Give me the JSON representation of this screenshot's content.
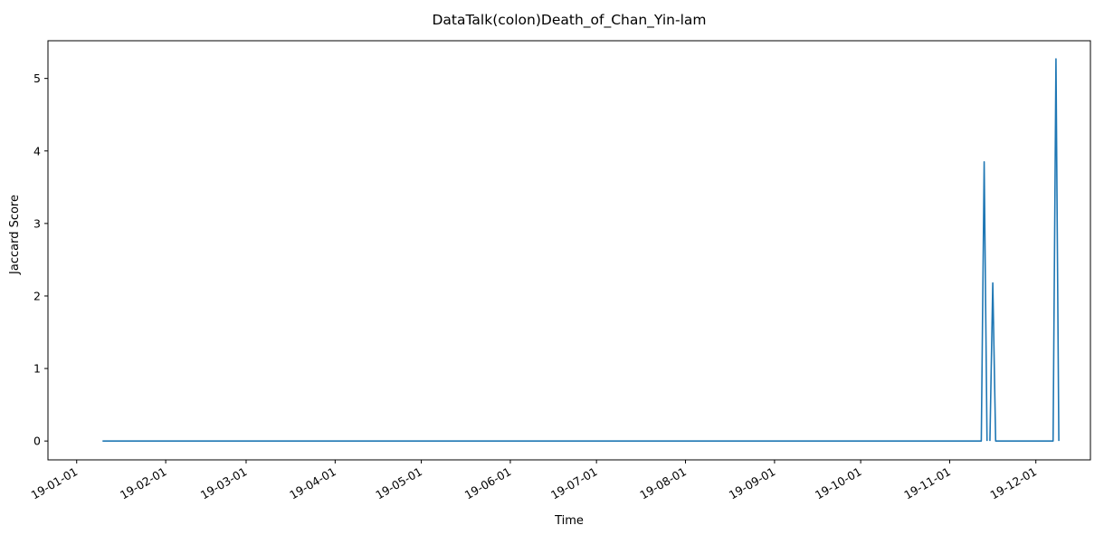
{
  "chart_data": {
    "type": "line",
    "title": "DataTalk(colon)Death_of_Chan_Yin-lam",
    "xlabel": "Time",
    "ylabel": "Jaccard Score",
    "x_range": [
      "2018-12-22",
      "2019-12-20"
    ],
    "ylim": [
      -0.26,
      5.52
    ],
    "grid": false,
    "x_ticks": [
      {
        "date": "2019-01-01",
        "label": "19-01-01"
      },
      {
        "date": "2019-02-01",
        "label": "19-02-01"
      },
      {
        "date": "2019-03-01",
        "label": "19-03-01"
      },
      {
        "date": "2019-04-01",
        "label": "19-04-01"
      },
      {
        "date": "2019-05-01",
        "label": "19-05-01"
      },
      {
        "date": "2019-06-01",
        "label": "19-06-01"
      },
      {
        "date": "2019-07-01",
        "label": "19-07-01"
      },
      {
        "date": "2019-08-01",
        "label": "19-08-01"
      },
      {
        "date": "2019-09-01",
        "label": "19-09-01"
      },
      {
        "date": "2019-10-01",
        "label": "19-10-01"
      },
      {
        "date": "2019-11-01",
        "label": "19-11-01"
      },
      {
        "date": "2019-12-01",
        "label": "19-12-01"
      }
    ],
    "y_ticks": [
      {
        "value": 0,
        "label": "0"
      },
      {
        "value": 1,
        "label": "1"
      },
      {
        "value": 2,
        "label": "2"
      },
      {
        "value": 3,
        "label": "3"
      },
      {
        "value": 4,
        "label": "4"
      },
      {
        "value": 5,
        "label": "5"
      }
    ],
    "series": [
      {
        "color": "#1f77b4",
        "segments": [
          [
            {
              "x": "2019-01-10",
              "y": 0
            },
            {
              "x": "2019-11-12",
              "y": 0
            },
            {
              "x": "2019-11-13",
              "y": 3.85
            },
            {
              "x": "2019-11-14",
              "y": 0
            }
          ],
          [
            {
              "x": "2019-11-15",
              "y": 0
            },
            {
              "x": "2019-11-16",
              "y": 2.18
            },
            {
              "x": "2019-11-17",
              "y": 0
            },
            {
              "x": "2019-12-07",
              "y": 0
            },
            {
              "x": "2019-12-08",
              "y": 5.27
            },
            {
              "x": "2019-12-09",
              "y": 0
            }
          ]
        ]
      }
    ]
  }
}
